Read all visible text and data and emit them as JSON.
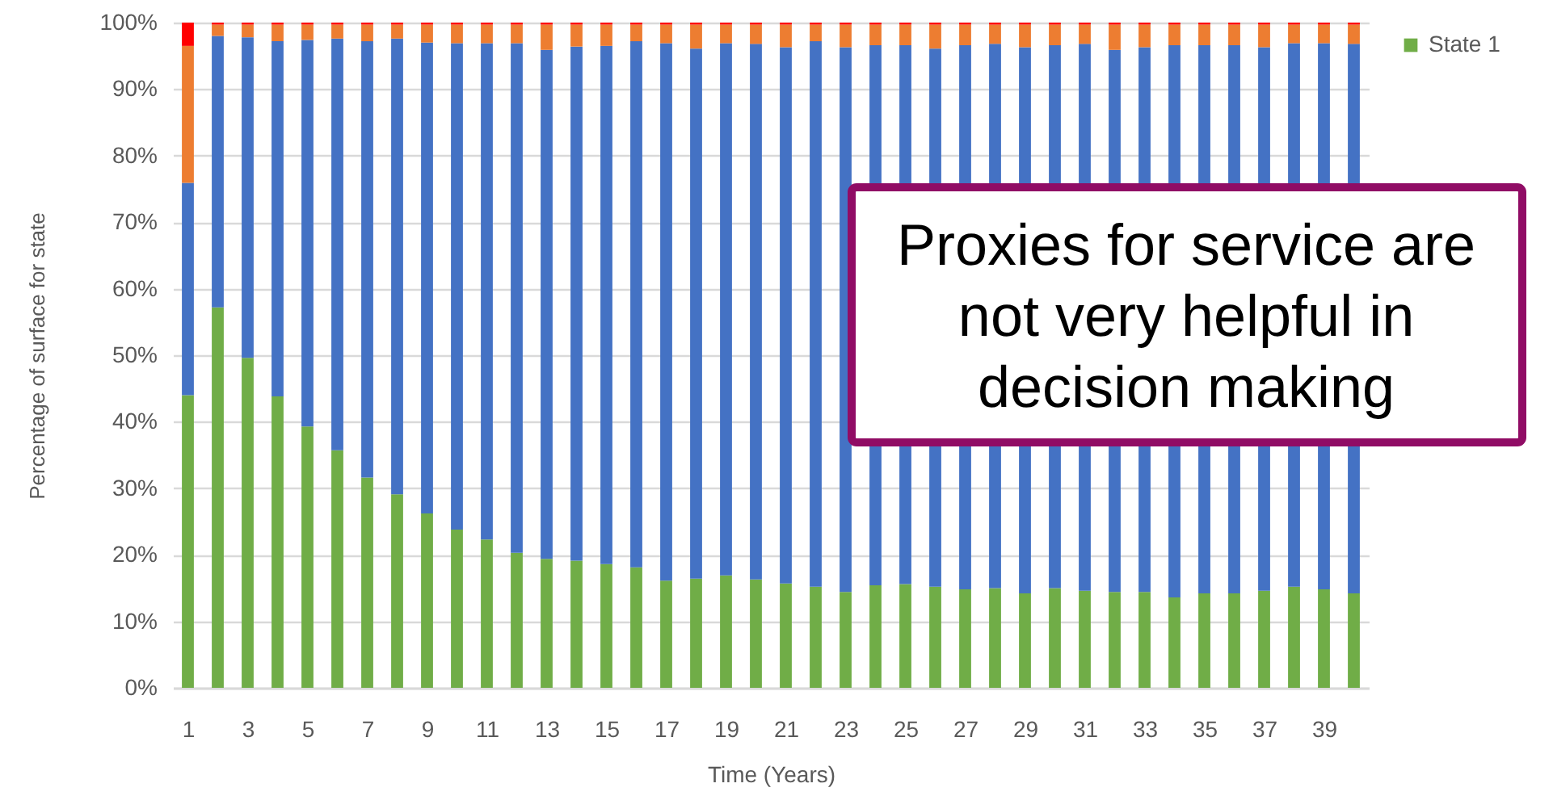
{
  "chart_data": {
    "type": "bar",
    "stacked": true,
    "x": [
      1,
      2,
      3,
      4,
      5,
      6,
      7,
      8,
      9,
      10,
      11,
      12,
      13,
      14,
      15,
      16,
      17,
      18,
      19,
      20,
      21,
      22,
      23,
      24,
      25,
      26,
      27,
      28,
      29,
      30,
      31,
      32,
      33,
      34,
      35,
      36,
      37,
      38,
      39,
      40
    ],
    "xlim": [
      0.5,
      40.5
    ],
    "xticks": [
      1,
      3,
      5,
      7,
      9,
      11,
      13,
      15,
      17,
      19,
      21,
      23,
      25,
      27,
      29,
      31,
      33,
      35,
      37,
      39
    ],
    "xlabel": "Time (Years)",
    "ylabel": "Percentage of surface for  state",
    "ylim": [
      0,
      100
    ],
    "yticks": [
      {
        "value": 0,
        "label": "0%"
      },
      {
        "value": 10,
        "label": "10%"
      },
      {
        "value": 20,
        "label": "20%"
      },
      {
        "value": 30,
        "label": "30%"
      },
      {
        "value": 40,
        "label": "40%"
      },
      {
        "value": 50,
        "label": "50%"
      },
      {
        "value": 60,
        "label": "60%"
      },
      {
        "value": 70,
        "label": "70%"
      },
      {
        "value": 80,
        "label": "80%"
      },
      {
        "value": 90,
        "label": "90%"
      },
      {
        "value": 100,
        "label": "100%"
      }
    ],
    "grid": "y",
    "legend": "top right",
    "series": [
      {
        "name": "State 1",
        "color": "#70ad47",
        "values": [
          44.0,
          57.2,
          49.6,
          43.8,
          39.3,
          35.7,
          31.6,
          29.1,
          26.2,
          23.8,
          22.3,
          20.3,
          19.4,
          19.1,
          18.6,
          18.1,
          16.1,
          16.4,
          16.9,
          16.3,
          15.7,
          15.2,
          14.4,
          15.4,
          15.6,
          15.2,
          14.8,
          15.0,
          14.2,
          15.0,
          14.6,
          14.4,
          14.4,
          13.6,
          14.2,
          14.2,
          14.6,
          15.2,
          14.8,
          14.2
        ]
      },
      {
        "color": "#4472c4",
        "values": [
          31.9,
          40.8,
          48.2,
          53.4,
          58.1,
          61.9,
          65.6,
          68.5,
          70.8,
          73.1,
          74.6,
          76.6,
          76.5,
          77.3,
          77.9,
          79.1,
          80.8,
          79.7,
          80.0,
          80.5,
          80.6,
          82.0,
          81.9,
          81.2,
          81.0,
          80.9,
          81.8,
          81.8,
          82.1,
          81.6,
          82.2,
          81.5,
          81.9,
          83.0,
          82.4,
          82.4,
          81.7,
          81.7,
          82.1,
          82.6
        ]
      },
      {
        "color": "#ed7d31",
        "values": [
          20.6,
          1.7,
          1.9,
          2.5,
          2.3,
          2.1,
          2.5,
          2.1,
          2.7,
          2.8,
          2.8,
          2.8,
          3.8,
          3.3,
          3.2,
          2.5,
          2.8,
          3.6,
          2.8,
          2.9,
          3.4,
          2.5,
          3.4,
          3.1,
          3.1,
          3.6,
          3.1,
          2.9,
          3.4,
          3.1,
          2.9,
          3.8,
          3.4,
          3.1,
          3.1,
          3.1,
          3.4,
          2.8,
          2.8,
          2.9
        ]
      },
      {
        "color": "#ff0000",
        "values": [
          3.5,
          0.3,
          0.3,
          0.3,
          0.3,
          0.3,
          0.3,
          0.3,
          0.3,
          0.3,
          0.3,
          0.3,
          0.3,
          0.3,
          0.3,
          0.3,
          0.3,
          0.3,
          0.3,
          0.3,
          0.3,
          0.3,
          0.3,
          0.3,
          0.3,
          0.3,
          0.3,
          0.3,
          0.3,
          0.3,
          0.3,
          0.3,
          0.3,
          0.3,
          0.3,
          0.3,
          0.3,
          0.3,
          0.3,
          0.3
        ]
      }
    ],
    "annotations": [
      "Proxies for service are not very helpful in decision making"
    ]
  }
}
